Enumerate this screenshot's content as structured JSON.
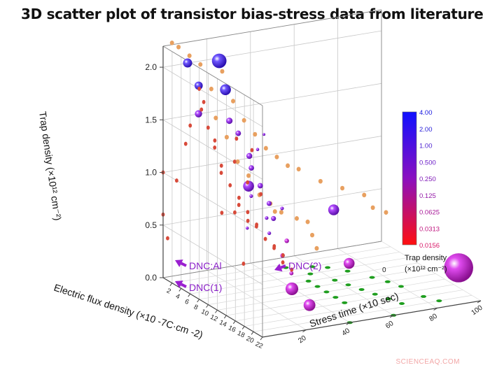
{
  "title": "3D scatter plot of transistor bias-stress data from literature",
  "watermark": "SCIENCEAQ.COM",
  "chart_data": {
    "type": "scatter",
    "title": "3D scatter plot of transistor bias-stress data from literature",
    "xlabel": "Electric flux density (×10 -7C·cm -2)",
    "ylabel": "Stress time (×10  sec)",
    "zlabel": "Trap density (×10¹² cm⁻²)",
    "xlim": [
      0,
      22
    ],
    "ylim": [
      0,
      100
    ],
    "zlim": [
      0,
      2.2
    ],
    "x_ticks": [
      "2",
      "4",
      "6",
      "8",
      "10",
      "12",
      "14",
      "16",
      "18",
      "20",
      "22"
    ],
    "y_ticks": [
      "0",
      "20",
      "40",
      "60",
      "80",
      "100"
    ],
    "y_ticks_shown": [
      "20",
      "40",
      "60",
      "80",
      "100"
    ],
    "z_ticks": [
      "0.0",
      "0.5",
      "1.0",
      "1.5",
      "2.0"
    ],
    "grid": true,
    "colorbar": {
      "title_line1": "Trap density",
      "title_line2": "(×10¹² cm⁻²)",
      "labels": [
        "4.00",
        "2.00",
        "1.00",
        "0.500",
        "0.250",
        "0.125",
        "0.0625",
        "0.0313",
        "0.0156"
      ],
      "color_top": "#1010ff",
      "color_bottom": "#ff1010"
    },
    "series": [
      {
        "role": "highlighted",
        "points": [
          {
            "x": 19,
            "y": 96,
            "z": 0.25,
            "size": 3.2,
            "label": "DNC(2)"
          },
          {
            "x": 14,
            "y": 30,
            "z": 0.15,
            "size": 1.4,
            "label": "DNC:Al"
          },
          {
            "x": 15,
            "y": 36,
            "z": 0.0,
            "size": 1.3,
            "label": "DNC(1)"
          }
        ]
      },
      {
        "role": "spheres",
        "points": [
          {
            "x": 3,
            "y": 5,
            "z": 2.1,
            "size": 1.0
          },
          {
            "x": 4,
            "y": 8,
            "z": 1.9,
            "size": 0.9
          },
          {
            "x": 3,
            "y": 10,
            "z": 1.6,
            "size": 0.8
          },
          {
            "x": 10,
            "y": 5,
            "z": 2.3,
            "size": 1.6
          },
          {
            "x": 8,
            "y": 12,
            "z": 1.95,
            "size": 1.2
          },
          {
            "x": 2,
            "y": 35,
            "z": 0.8,
            "size": 1.2
          },
          {
            "x": 16,
            "y": 45,
            "z": 0.9,
            "size": 1.2
          },
          {
            "x": 17,
            "y": 50,
            "z": 0.4,
            "size": 1.2
          },
          {
            "x": 5,
            "y": 20,
            "z": 1.55,
            "size": 0.7
          },
          {
            "x": 6,
            "y": 22,
            "z": 1.45,
            "size": 0.6
          },
          {
            "x": 7,
            "y": 25,
            "z": 1.25,
            "size": 0.65
          },
          {
            "x": 6,
            "y": 28,
            "z": 1.1,
            "size": 0.6
          },
          {
            "x": 7,
            "y": 30,
            "z": 0.95,
            "size": 0.6
          },
          {
            "x": 8,
            "y": 32,
            "z": 0.8,
            "size": 0.55
          },
          {
            "x": 8,
            "y": 34,
            "z": 0.65,
            "size": 0.55
          },
          {
            "x": 9,
            "y": 38,
            "z": 0.45,
            "size": 0.5
          },
          {
            "x": 5,
            "y": 30,
            "z": 0.8,
            "size": 0.4
          },
          {
            "x": 6,
            "y": 35,
            "z": 0.6,
            "size": 0.4
          },
          {
            "x": 9,
            "y": 30,
            "z": 0.55,
            "size": 0.4
          },
          {
            "x": 10,
            "y": 34,
            "z": 0.35,
            "size": 0.5
          },
          {
            "x": 7,
            "y": 40,
            "z": 0.7,
            "size": 0.4
          },
          {
            "x": 4,
            "y": 35,
            "z": 1.2,
            "size": 0.35
          },
          {
            "x": 3,
            "y": 40,
            "z": 1.3,
            "size": 0.3
          },
          {
            "x": 8,
            "y": 22,
            "z": 0.6,
            "size": 0.35
          },
          {
            "x": 11,
            "y": 36,
            "z": 0.2,
            "size": 0.45
          }
        ]
      },
      {
        "role": "orange",
        "points": [
          {
            "x": 1,
            "y": 2,
            "z": 2.25
          },
          {
            "x": 1,
            "y": 5,
            "z": 2.2
          },
          {
            "x": 1,
            "y": 10,
            "z": 2.1
          },
          {
            "x": 1,
            "y": 20,
            "z": 1.75
          },
          {
            "x": 1,
            "y": 25,
            "z": 1.9
          },
          {
            "x": 1,
            "y": 30,
            "z": 1.6
          },
          {
            "x": 1,
            "y": 35,
            "z": 1.4
          },
          {
            "x": 1,
            "y": 40,
            "z": 1.25
          },
          {
            "x": 1,
            "y": 45,
            "z": 1.1
          },
          {
            "x": 1,
            "y": 50,
            "z": 1.0
          },
          {
            "x": 1,
            "y": 55,
            "z": 0.9
          },
          {
            "x": 1,
            "y": 60,
            "z": 0.85
          },
          {
            "x": 2,
            "y": 40,
            "z": 0.7
          },
          {
            "x": 2,
            "y": 45,
            "z": 0.6
          },
          {
            "x": 2,
            "y": 50,
            "z": 0.5
          },
          {
            "x": 3,
            "y": 55,
            "z": 0.45
          },
          {
            "x": 3,
            "y": 60,
            "z": 0.4
          },
          {
            "x": 2,
            "y": 30,
            "z": 1.05
          },
          {
            "x": 2,
            "y": 35,
            "z": 0.9
          },
          {
            "x": 1,
            "y": 70,
            "z": 0.7
          },
          {
            "x": 1,
            "y": 80,
            "z": 0.6
          },
          {
            "x": 1,
            "y": 90,
            "z": 0.5
          },
          {
            "x": 4,
            "y": 60,
            "z": 0.3
          },
          {
            "x": 5,
            "y": 60,
            "z": 0.2
          },
          {
            "x": 1,
            "y": 15,
            "z": 2.0
          },
          {
            "x": 2,
            "y": 20,
            "z": 1.5
          },
          {
            "x": 2,
            "y": 25,
            "z": 1.3
          },
          {
            "x": 0.5,
            "y": 95,
            "z": 0.35
          },
          {
            "x": 3,
            "y": 45,
            "z": 0.55
          },
          {
            "x": 1,
            "y": 100,
            "z": 0.3
          }
        ]
      },
      {
        "role": "red",
        "points": [
          {
            "x": 8,
            "y": 0,
            "z": 2.0
          },
          {
            "x": 9,
            "y": 0,
            "z": 1.9
          },
          {
            "x": 8,
            "y": 1,
            "z": 1.8
          },
          {
            "x": 9,
            "y": 2,
            "z": 1.65
          },
          {
            "x": 10,
            "y": 3,
            "z": 1.55
          },
          {
            "x": 9,
            "y": 5,
            "z": 1.45
          },
          {
            "x": 10,
            "y": 6,
            "z": 1.3
          },
          {
            "x": 9,
            "y": 8,
            "z": 1.2
          },
          {
            "x": 10,
            "y": 10,
            "z": 1.1
          },
          {
            "x": 11,
            "y": 12,
            "z": 1.0
          },
          {
            "x": 10,
            "y": 14,
            "z": 0.9
          },
          {
            "x": 11,
            "y": 16,
            "z": 0.85
          },
          {
            "x": 12,
            "y": 18,
            "z": 0.75
          },
          {
            "x": 11,
            "y": 20,
            "z": 0.7
          },
          {
            "x": 12,
            "y": 22,
            "z": 0.6
          },
          {
            "x": 13,
            "y": 24,
            "z": 0.55
          },
          {
            "x": 12,
            "y": 26,
            "z": 0.5
          },
          {
            "x": 13,
            "y": 28,
            "z": 0.45
          },
          {
            "x": 10,
            "y": 18,
            "z": 1.1
          },
          {
            "x": 11,
            "y": 22,
            "z": 1.0
          },
          {
            "x": 12,
            "y": 8,
            "z": 0.9
          },
          {
            "x": 9,
            "y": 15,
            "z": 1.5
          },
          {
            "x": 10,
            "y": 20,
            "z": 1.4
          },
          {
            "x": 12,
            "y": 12,
            "z": 0.4
          },
          {
            "x": 6,
            "y": 0,
            "z": 1.6
          },
          {
            "x": 5,
            "y": 0,
            "z": 1.4
          },
          {
            "x": 3,
            "y": 0,
            "z": 1.0
          },
          {
            "x": 0,
            "y": 0,
            "z": 1.0
          },
          {
            "x": 0,
            "y": 0,
            "z": 0.6
          },
          {
            "x": 1,
            "y": 0,
            "z": 0.4
          },
          {
            "x": 13,
            "y": 0,
            "z": 0.95
          },
          {
            "x": 12,
            "y": 30,
            "z": 0.35
          },
          {
            "x": 13,
            "y": 32,
            "z": 0.3
          },
          {
            "x": 11,
            "y": 10,
            "z": 1.35
          },
          {
            "x": 12,
            "y": 14,
            "z": 0.8
          }
        ]
      },
      {
        "role": "green",
        "points": [
          {
            "x": 8,
            "y": 50,
            "z": 0
          },
          {
            "x": 10,
            "y": 50,
            "z": 0
          },
          {
            "x": 12,
            "y": 50,
            "z": 0
          },
          {
            "x": 14,
            "y": 50,
            "z": 0
          },
          {
            "x": 16,
            "y": 50,
            "z": 0
          },
          {
            "x": 6,
            "y": 55,
            "z": 0
          },
          {
            "x": 9,
            "y": 60,
            "z": 0
          },
          {
            "x": 11,
            "y": 62,
            "z": 0
          },
          {
            "x": 13,
            "y": 64,
            "z": 0
          },
          {
            "x": 15,
            "y": 66,
            "z": 0
          },
          {
            "x": 17,
            "y": 68,
            "z": 0
          },
          {
            "x": 19,
            "y": 70,
            "z": 0
          },
          {
            "x": 7,
            "y": 70,
            "z": 0
          },
          {
            "x": 10,
            "y": 75,
            "z": 0
          },
          {
            "x": 12,
            "y": 78,
            "z": 0
          },
          {
            "x": 14,
            "y": 80,
            "z": 0
          },
          {
            "x": 18,
            "y": 82,
            "z": 0
          },
          {
            "x": 20,
            "y": 85,
            "z": 0
          },
          {
            "x": 22,
            "y": 60,
            "z": 0
          },
          {
            "x": 22,
            "y": 40,
            "z": 0
          },
          {
            "x": 4,
            "y": 60,
            "z": 0
          },
          {
            "x": 5,
            "y": 65,
            "z": 0
          },
          {
            "x": 3,
            "y": 50,
            "z": 0
          }
        ]
      }
    ],
    "annotations": [
      "DNC(2)",
      "DNC:Al",
      "DNC(1)"
    ]
  }
}
